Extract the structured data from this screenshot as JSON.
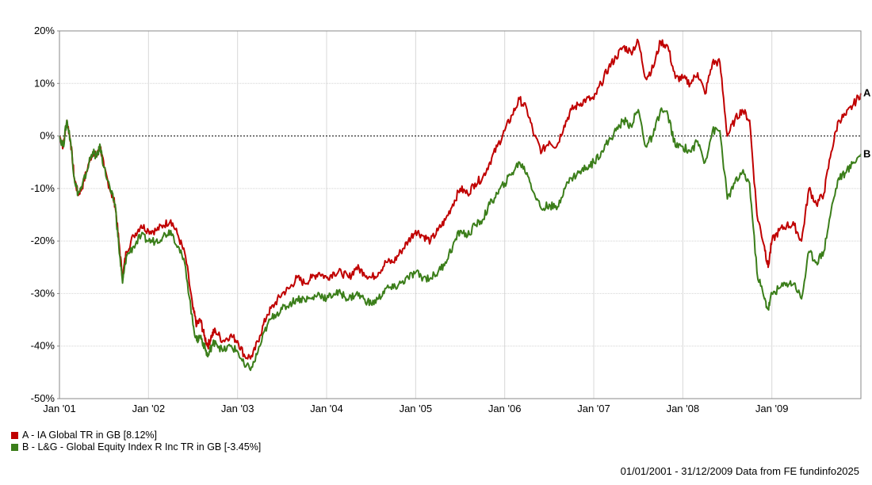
{
  "chart_data": {
    "type": "line",
    "ylim": [
      -50,
      20
    ],
    "y_ticks": [
      20,
      10,
      0,
      -10,
      -20,
      -30,
      -40,
      -50
    ],
    "y_tick_labels": [
      "20%",
      "10%",
      "0%",
      "-10%",
      "-20%",
      "-30%",
      "-40%",
      "-50%"
    ],
    "x_tick_labels": [
      "Jan '01",
      "Jan '02",
      "Jan '03",
      "Jan '04",
      "Jan '05",
      "Jan '06",
      "Jan '07",
      "Jan '08",
      "Jan '09"
    ],
    "x_tick_values": [
      0,
      12,
      24,
      36,
      48,
      60,
      72,
      84,
      96
    ],
    "x_range": [
      0,
      108
    ],
    "grid": true,
    "series": [
      {
        "name": "A - IA Global TR in GB [8.12%]",
        "end_label": "A",
        "color": "#c00000",
        "points": [
          [
            0,
            0
          ],
          [
            0.5,
            -2
          ],
          [
            1,
            3
          ],
          [
            1.5,
            -1
          ],
          [
            2,
            -8
          ],
          [
            2.5,
            -11
          ],
          [
            3,
            -10
          ],
          [
            4,
            -5
          ],
          [
            4.5,
            -3
          ],
          [
            5,
            -4
          ],
          [
            5.5,
            -2
          ],
          [
            6,
            -6
          ],
          [
            7,
            -11
          ],
          [
            7.5,
            -13
          ],
          [
            8,
            -20
          ],
          [
            8.5,
            -27
          ],
          [
            9,
            -22
          ],
          [
            10,
            -19
          ],
          [
            11,
            -17
          ],
          [
            12,
            -18
          ],
          [
            13,
            -18
          ],
          [
            14,
            -17
          ],
          [
            15,
            -16
          ],
          [
            16,
            -19
          ],
          [
            17,
            -23
          ],
          [
            18,
            -33
          ],
          [
            18.5,
            -36
          ],
          [
            19,
            -35
          ],
          [
            19.5,
            -38
          ],
          [
            20,
            -40
          ],
          [
            20.5,
            -38
          ],
          [
            21,
            -37
          ],
          [
            22,
            -39
          ],
          [
            23,
            -38
          ],
          [
            24,
            -39
          ],
          [
            25,
            -42
          ],
          [
            26,
            -42
          ],
          [
            27,
            -38
          ],
          [
            28,
            -34
          ],
          [
            29,
            -32
          ],
          [
            30,
            -30
          ],
          [
            31,
            -29
          ],
          [
            32,
            -27
          ],
          [
            33,
            -28
          ],
          [
            34,
            -27
          ],
          [
            35,
            -26
          ],
          [
            36,
            -27
          ],
          [
            37,
            -26
          ],
          [
            38,
            -26
          ],
          [
            39,
            -27
          ],
          [
            40,
            -25
          ],
          [
            41,
            -26
          ],
          [
            42,
            -27
          ],
          [
            43,
            -26
          ],
          [
            44,
            -24
          ],
          [
            45,
            -24
          ],
          [
            46,
            -22
          ],
          [
            47,
            -20
          ],
          [
            48,
            -18
          ],
          [
            49,
            -19
          ],
          [
            50,
            -20
          ],
          [
            51,
            -18
          ],
          [
            52,
            -16
          ],
          [
            53,
            -13
          ],
          [
            54,
            -10
          ],
          [
            55,
            -11
          ],
          [
            56,
            -9
          ],
          [
            57,
            -8
          ],
          [
            58,
            -5
          ],
          [
            59,
            -2
          ],
          [
            60,
            1
          ],
          [
            61,
            4
          ],
          [
            62,
            7
          ],
          [
            63,
            5
          ],
          [
            64,
            0
          ],
          [
            65,
            -3
          ],
          [
            66,
            -1
          ],
          [
            67,
            -2
          ],
          [
            68,
            2
          ],
          [
            69,
            5
          ],
          [
            70,
            6
          ],
          [
            71,
            7
          ],
          [
            72,
            7
          ],
          [
            73,
            10
          ],
          [
            74,
            13
          ],
          [
            75,
            15
          ],
          [
            76,
            17
          ],
          [
            77,
            16
          ],
          [
            78,
            18
          ],
          [
            79,
            11
          ],
          [
            80,
            13
          ],
          [
            81,
            18
          ],
          [
            82,
            17
          ],
          [
            83,
            11
          ],
          [
            84,
            11
          ],
          [
            85,
            10
          ],
          [
            86,
            12
          ],
          [
            87,
            8
          ],
          [
            88,
            14
          ],
          [
            89,
            14
          ],
          [
            90,
            0
          ],
          [
            91,
            3
          ],
          [
            92,
            5
          ],
          [
            93,
            3
          ],
          [
            94,
            -15
          ],
          [
            95,
            -21
          ],
          [
            95.5,
            -25
          ],
          [
            96,
            -20
          ],
          [
            97,
            -18
          ],
          [
            98,
            -17
          ],
          [
            99,
            -17
          ],
          [
            100,
            -20
          ],
          [
            101,
            -10
          ],
          [
            102,
            -13
          ],
          [
            103,
            -11
          ],
          [
            104,
            -3
          ],
          [
            105,
            3
          ],
          [
            106,
            4
          ],
          [
            107,
            6
          ],
          [
            108,
            8.12
          ]
        ]
      },
      {
        "name": "B - L&G - Global Equity Index R Inc TR in GB [-3.45%]",
        "end_label": "B",
        "color": "#3b7e1a",
        "points": [
          [
            0,
            0
          ],
          [
            0.5,
            -2
          ],
          [
            1,
            3
          ],
          [
            1.5,
            -1
          ],
          [
            2,
            -8
          ],
          [
            2.5,
            -11
          ],
          [
            3,
            -10
          ],
          [
            4,
            -5
          ],
          [
            4.5,
            -3
          ],
          [
            5,
            -4
          ],
          [
            5.5,
            -2
          ],
          [
            6,
            -6
          ],
          [
            7,
            -11
          ],
          [
            7.5,
            -13
          ],
          [
            8,
            -21
          ],
          [
            8.5,
            -28
          ],
          [
            9,
            -23
          ],
          [
            10,
            -21
          ],
          [
            11,
            -19
          ],
          [
            12,
            -20
          ],
          [
            13,
            -20
          ],
          [
            14,
            -19
          ],
          [
            15,
            -18
          ],
          [
            16,
            -21
          ],
          [
            17,
            -25
          ],
          [
            18,
            -36
          ],
          [
            18.5,
            -39
          ],
          [
            19,
            -38
          ],
          [
            19.5,
            -40
          ],
          [
            20,
            -42
          ],
          [
            20.5,
            -40
          ],
          [
            21,
            -39
          ],
          [
            22,
            -41
          ],
          [
            23,
            -40
          ],
          [
            24,
            -41
          ],
          [
            25,
            -44
          ],
          [
            26,
            -44
          ],
          [
            27,
            -40
          ],
          [
            28,
            -36
          ],
          [
            29,
            -34
          ],
          [
            30,
            -33
          ],
          [
            31,
            -32
          ],
          [
            32,
            -31
          ],
          [
            33,
            -31
          ],
          [
            34,
            -31
          ],
          [
            35,
            -30
          ],
          [
            36,
            -31
          ],
          [
            37,
            -30
          ],
          [
            38,
            -30
          ],
          [
            39,
            -31
          ],
          [
            40,
            -30
          ],
          [
            41,
            -31
          ],
          [
            42,
            -32
          ],
          [
            43,
            -31
          ],
          [
            44,
            -29
          ],
          [
            45,
            -29
          ],
          [
            46,
            -28
          ],
          [
            47,
            -27
          ],
          [
            48,
            -26
          ],
          [
            49,
            -27
          ],
          [
            50,
            -27
          ],
          [
            51,
            -26
          ],
          [
            52,
            -24
          ],
          [
            53,
            -21
          ],
          [
            54,
            -18
          ],
          [
            55,
            -19
          ],
          [
            56,
            -17
          ],
          [
            57,
            -16
          ],
          [
            58,
            -13
          ],
          [
            59,
            -11
          ],
          [
            60,
            -9
          ],
          [
            61,
            -7
          ],
          [
            62,
            -5
          ],
          [
            63,
            -7
          ],
          [
            64,
            -11
          ],
          [
            65,
            -14
          ],
          [
            66,
            -13
          ],
          [
            67,
            -14
          ],
          [
            68,
            -10
          ],
          [
            69,
            -8
          ],
          [
            70,
            -7
          ],
          [
            71,
            -6
          ],
          [
            72,
            -5
          ],
          [
            73,
            -3
          ],
          [
            74,
            -1
          ],
          [
            75,
            1
          ],
          [
            76,
            3
          ],
          [
            77,
            2
          ],
          [
            78,
            5
          ],
          [
            79,
            -2
          ],
          [
            80,
            0
          ],
          [
            81,
            5
          ],
          [
            82,
            4
          ],
          [
            83,
            -2
          ],
          [
            84,
            -2
          ],
          [
            85,
            -3
          ],
          [
            86,
            -1
          ],
          [
            87,
            -5
          ],
          [
            88,
            1
          ],
          [
            89,
            1
          ],
          [
            90,
            -12
          ],
          [
            91,
            -9
          ],
          [
            92,
            -7
          ],
          [
            93,
            -9
          ],
          [
            94,
            -26
          ],
          [
            95,
            -31
          ],
          [
            95.5,
            -33
          ],
          [
            96,
            -30
          ],
          [
            97,
            -29
          ],
          [
            98,
            -28
          ],
          [
            99,
            -28
          ],
          [
            100,
            -31
          ],
          [
            101,
            -22
          ],
          [
            102,
            -24
          ],
          [
            103,
            -22
          ],
          [
            104,
            -14
          ],
          [
            105,
            -8
          ],
          [
            106,
            -7
          ],
          [
            107,
            -5
          ],
          [
            108,
            -3.45
          ]
        ]
      }
    ]
  },
  "footer": {
    "text": "01/01/2001 - 31/12/2009 Data from FE fundinfo2025"
  }
}
